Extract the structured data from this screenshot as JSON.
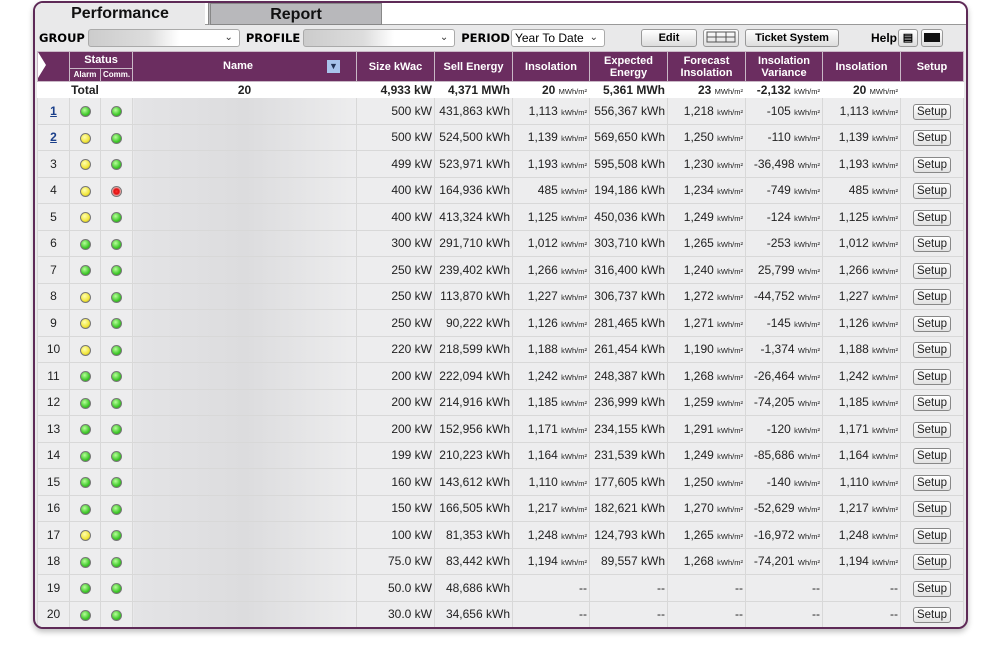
{
  "tabs": [
    "Performance",
    "Report"
  ],
  "toolbar": {
    "group_label": "GROUP",
    "group_value": "",
    "profile_label": "PROFILE",
    "profile_value": "",
    "period_label": "PERIOD",
    "period_value": "Year To Date",
    "edit": "Edit",
    "ticket": "Ticket System",
    "help": "Help"
  },
  "headers": {
    "status": "Status",
    "alarm": "Alarm",
    "comm": "Comm.",
    "name": "Name",
    "size": "Size kWac",
    "sell": "Sell Energy",
    "insolation": "Insolation",
    "expected": "Expected Energy",
    "forecast": "Forecast Insolation",
    "variance": "Insolation Variance",
    "insolation2": "Insolation",
    "setup": "Setup"
  },
  "total": {
    "label": "Total",
    "name": "20",
    "size": "4,933 kW",
    "sell": "4,371 MWh",
    "insol": "20",
    "insol_u": "MWh/m²",
    "expected": "5,361 MWh",
    "forecast": "23",
    "forecast_u": "MWh/m²",
    "variance": "-2,132",
    "variance_u": "kWh/m²",
    "insol2": "20",
    "insol2_u": "MWh/m²"
  },
  "status_colors": {
    "green": "#3fc82a",
    "yellow": "#f1e53a",
    "red": "#e01010"
  },
  "setup_label": "Setup",
  "rows": [
    [
      "1",
      true,
      "green",
      "green",
      "500 kW",
      "431,863 kWh",
      "1,113",
      "556,367 kWh",
      "1,218",
      "-105",
      "kWh/m²",
      "1,113"
    ],
    [
      "2",
      true,
      "yellow",
      "green",
      "500 kW",
      "524,500 kWh",
      "1,139",
      "569,650 kWh",
      "1,250",
      "-110",
      "kWh/m²",
      "1,139"
    ],
    [
      "3",
      false,
      "yellow",
      "green",
      "499 kW",
      "523,971 kWh",
      "1,193",
      "595,508 kWh",
      "1,230",
      "-36,498",
      "Wh/m²",
      "1,193"
    ],
    [
      "4",
      false,
      "yellow",
      "red",
      "400 kW",
      "164,936 kWh",
      "485",
      "194,186 kWh",
      "1,234",
      "-749",
      "kWh/m²",
      "485"
    ],
    [
      "5",
      false,
      "yellow",
      "green",
      "400 kW",
      "413,324 kWh",
      "1,125",
      "450,036 kWh",
      "1,249",
      "-124",
      "kWh/m²",
      "1,125"
    ],
    [
      "6",
      false,
      "green",
      "green",
      "300 kW",
      "291,710 kWh",
      "1,012",
      "303,710 kWh",
      "1,265",
      "-253",
      "kWh/m²",
      "1,012"
    ],
    [
      "7",
      false,
      "green",
      "green",
      "250 kW",
      "239,402 kWh",
      "1,266",
      "316,400 kWh",
      "1,240",
      "25,799",
      "Wh/m²",
      "1,266"
    ],
    [
      "8",
      false,
      "yellow",
      "green",
      "250 kW",
      "113,870 kWh",
      "1,227",
      "306,737 kWh",
      "1,272",
      "-44,752",
      "Wh/m²",
      "1,227"
    ],
    [
      "9",
      false,
      "yellow",
      "green",
      "250 kW",
      "90,222 kWh",
      "1,126",
      "281,465 kWh",
      "1,271",
      "-145",
      "kWh/m²",
      "1,126"
    ],
    [
      "10",
      false,
      "yellow",
      "green",
      "220 kW",
      "218,599 kWh",
      "1,188",
      "261,454 kWh",
      "1,190",
      "-1,374",
      "Wh/m²",
      "1,188"
    ],
    [
      "11",
      false,
      "green",
      "green",
      "200 kW",
      "222,094 kWh",
      "1,242",
      "248,387 kWh",
      "1,268",
      "-26,464",
      "Wh/m²",
      "1,242"
    ],
    [
      "12",
      false,
      "green",
      "green",
      "200 kW",
      "214,916 kWh",
      "1,185",
      "236,999 kWh",
      "1,259",
      "-74,205",
      "Wh/m²",
      "1,185"
    ],
    [
      "13",
      false,
      "green",
      "green",
      "200 kW",
      "152,956 kWh",
      "1,171",
      "234,155 kWh",
      "1,291",
      "-120",
      "kWh/m²",
      "1,171"
    ],
    [
      "14",
      false,
      "green",
      "green",
      "199 kW",
      "210,223 kWh",
      "1,164",
      "231,539 kWh",
      "1,249",
      "-85,686",
      "Wh/m²",
      "1,164"
    ],
    [
      "15",
      false,
      "green",
      "green",
      "160 kW",
      "143,612 kWh",
      "1,110",
      "177,605 kWh",
      "1,250",
      "-140",
      "kWh/m²",
      "1,110"
    ],
    [
      "16",
      false,
      "green",
      "green",
      "150 kW",
      "166,505 kWh",
      "1,217",
      "182,621 kWh",
      "1,270",
      "-52,629",
      "Wh/m²",
      "1,217"
    ],
    [
      "17",
      false,
      "yellow",
      "green",
      "100 kW",
      "81,353 kWh",
      "1,248",
      "124,793 kWh",
      "1,265",
      "-16,972",
      "Wh/m²",
      "1,248"
    ],
    [
      "18",
      false,
      "green",
      "green",
      "75.0 kW",
      "83,442 kWh",
      "1,194",
      "89,557 kWh",
      "1,268",
      "-74,201",
      "Wh/m²",
      "1,194"
    ],
    [
      "19",
      false,
      "green",
      "green",
      "50.0 kW",
      "48,686 kWh",
      "--",
      "--",
      "--",
      "--",
      "",
      "--"
    ],
    [
      "20",
      false,
      "green",
      "green",
      "30.0 kW",
      "34,656 kWh",
      "--",
      "--",
      "--",
      "--",
      "",
      "--"
    ]
  ],
  "unit_kwh": "kWh/m²"
}
